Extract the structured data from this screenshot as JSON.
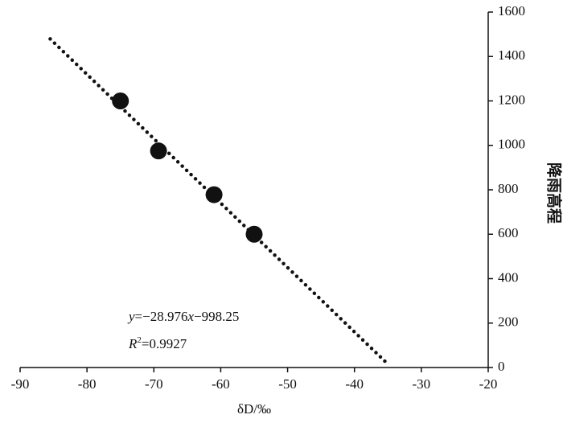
{
  "chart_data": {
    "type": "scatter",
    "x_label": "δD/‰",
    "y_label": "降雨高程",
    "xlim": [
      -90,
      -20
    ],
    "xticks": [
      -90,
      -80,
      -70,
      -60,
      -50,
      -40,
      -30,
      -20
    ],
    "ylim": [
      0,
      1600
    ],
    "yticks": [
      0,
      200,
      400,
      600,
      800,
      1000,
      1200,
      1400,
      1600
    ],
    "series": [
      {
        "color": "#111111",
        "style": "marker",
        "x": [
          -75,
          -69.3,
          -61,
          -55
        ],
        "values": [
          1200,
          975,
          778,
          600
        ]
      },
      {
        "color": "#111111",
        "style": "dotted",
        "x": [
          -85.5,
          -35.3
        ],
        "values": [
          1479,
          24
        ]
      }
    ],
    "equation": [
      "y",
      "=−28.976",
      "x",
      "−998.25"
    ],
    "r_squared": [
      "R",
      "2",
      "=0.9927"
    ]
  }
}
